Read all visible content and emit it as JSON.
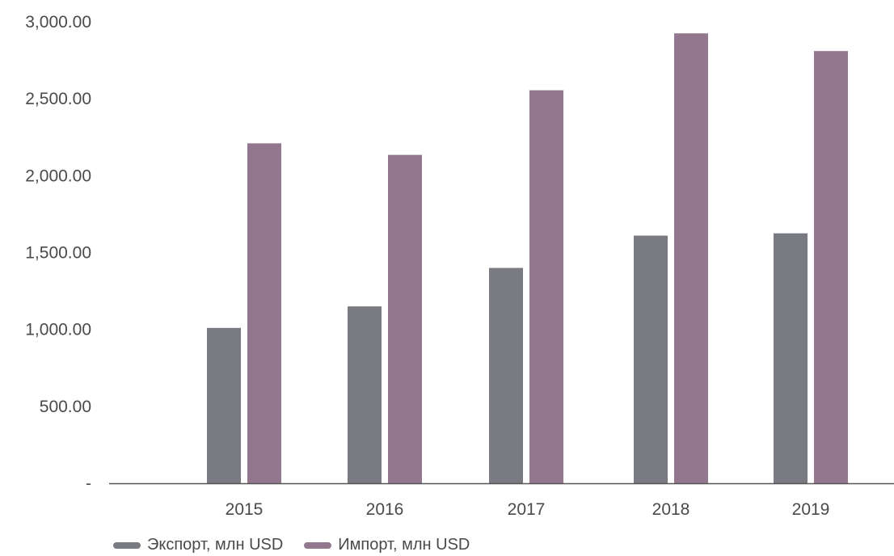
{
  "chart_data": {
    "type": "bar",
    "categories": [
      "2015",
      "2016",
      "2017",
      "2018",
      "2019"
    ],
    "series": [
      {
        "name": "Экспорт, млн USD",
        "color": "#7a7a83",
        "values": [
          1010,
          1150,
          1400,
          1610,
          1625
        ]
      },
      {
        "name": "Импорт, млн USD",
        "color": "#93778f",
        "values": [
          2210,
          2135,
          2555,
          2925,
          2810
        ]
      }
    ],
    "ylim": [
      0,
      3000
    ],
    "y_ticks": [
      {
        "value": 0,
        "label": "-"
      },
      {
        "value": 500,
        "label": "500.00"
      },
      {
        "value": 1000,
        "label": "1,000.00"
      },
      {
        "value": 1500,
        "label": "1,500.00"
      },
      {
        "value": 2000,
        "label": "2,000.00"
      },
      {
        "value": 2500,
        "label": "2,500.00"
      },
      {
        "value": 3000,
        "label": "3,000.00"
      }
    ],
    "grid": false,
    "legend_position": "bottom-left",
    "axis_color": "#555555"
  }
}
